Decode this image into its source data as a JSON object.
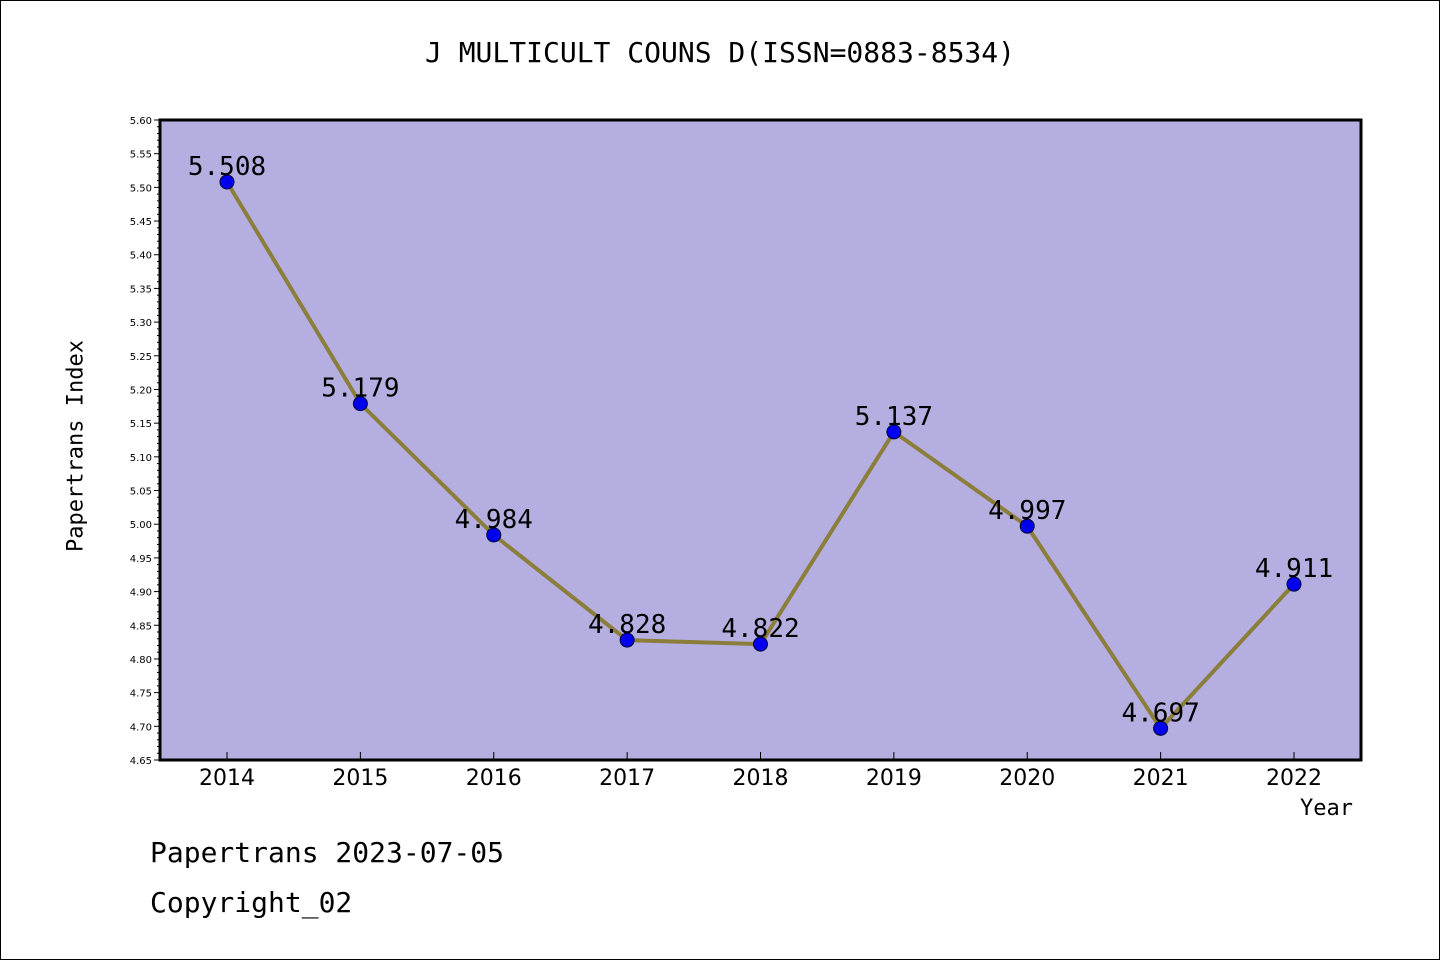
{
  "chart_data": {
    "type": "line",
    "title": "J MULTICULT COUNS D(ISSN=0883-8534)",
    "xlabel": "Year",
    "ylabel": "Papertrans Index",
    "categories": [
      "2014",
      "2015",
      "2016",
      "2017",
      "2018",
      "2019",
      "2020",
      "2021",
      "2022"
    ],
    "values": [
      5.508,
      5.179,
      4.984,
      4.828,
      4.822,
      5.137,
      4.997,
      4.697,
      4.911
    ],
    "data_labels": [
      "5.508",
      "5.179",
      "4.984",
      "4.828",
      "4.822",
      "5.137",
      "4.997",
      "4.697",
      "4.911"
    ],
    "ylim": [
      4.65,
      5.6
    ],
    "yticks": [
      "4.65",
      "4.70",
      "4.75",
      "4.80",
      "4.85",
      "4.90",
      "4.95",
      "5.00",
      "5.05",
      "5.10",
      "5.15",
      "5.20",
      "5.25",
      "5.30",
      "5.35",
      "5.40",
      "5.45",
      "5.50",
      "5.55",
      "5.60"
    ],
    "grid": false,
    "colors": {
      "plot_background": "#b5aee0",
      "line": "#8b7d3a",
      "marker": "#0000ee"
    }
  },
  "footer": {
    "line1": "Papertrans 2023-07-05",
    "line2": "Copyright_02"
  }
}
